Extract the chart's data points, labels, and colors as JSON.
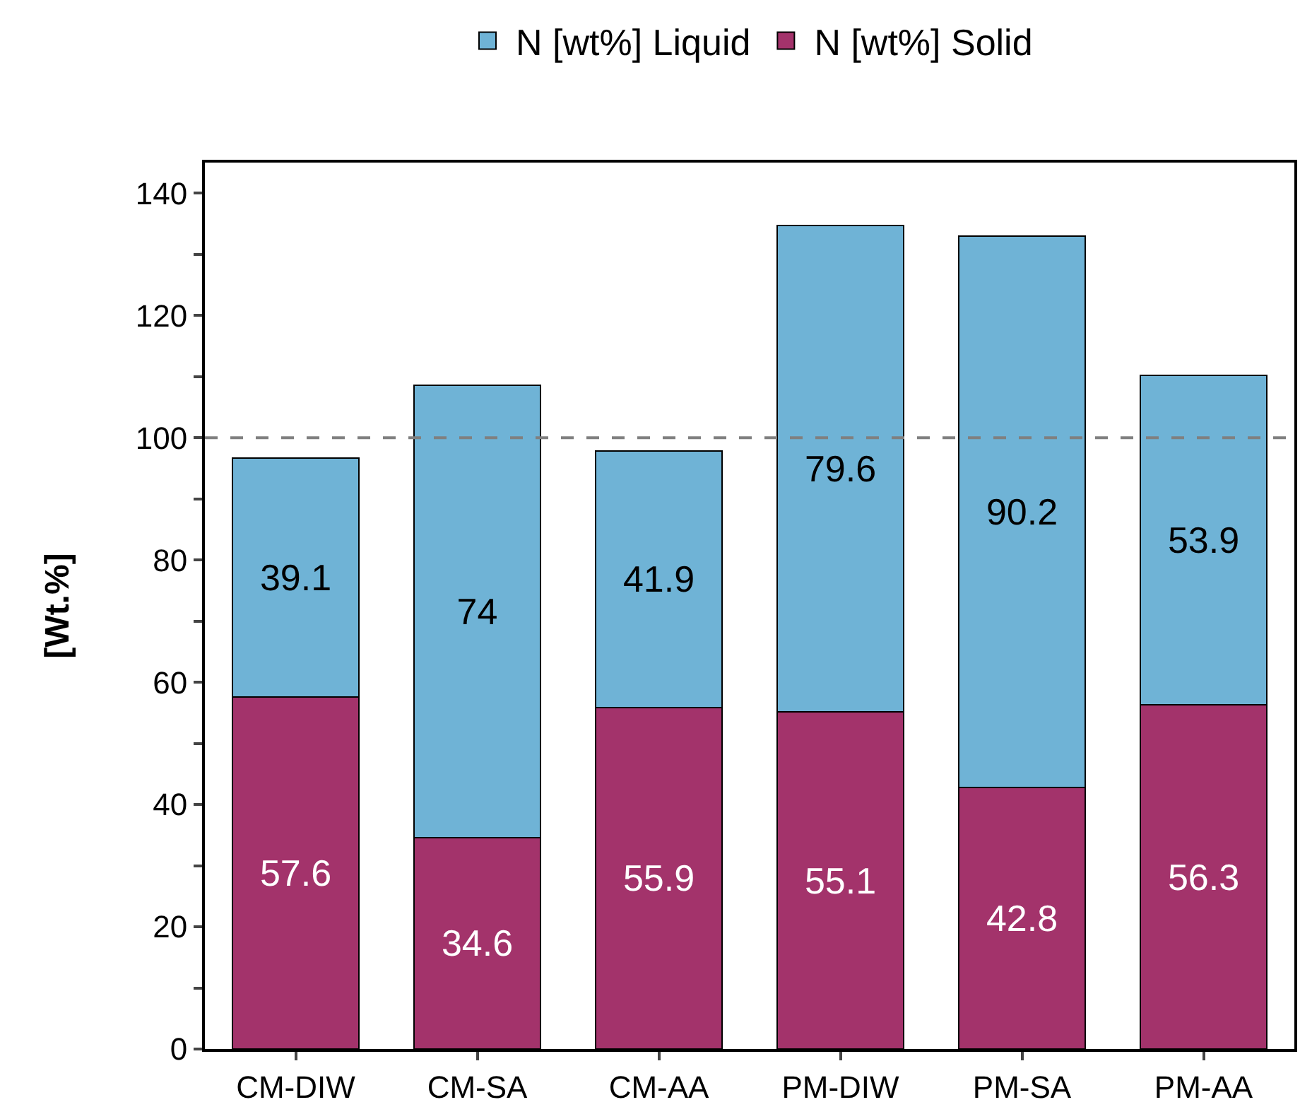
{
  "chart_data": {
    "type": "bar",
    "stacked": true,
    "ylabel": "[Wt.%]",
    "categories": [
      "CM-DIW",
      "CM-SA",
      "CM-AA",
      "PM-DIW",
      "PM-SA",
      "PM-AA"
    ],
    "series": [
      {
        "name": "N [wt%] Solid",
        "color": "#a3336b",
        "values": [
          57.6,
          34.6,
          55.9,
          55.1,
          42.8,
          56.3
        ]
      },
      {
        "name": "N [wt%] Liquid",
        "color": "#6fb3d6",
        "values": [
          39.1,
          74,
          41.9,
          79.6,
          90.2,
          53.9
        ]
      }
    ],
    "ylim": [
      0,
      145
    ],
    "yticks": [
      0,
      {
        "value": 10,
        "label": null
      },
      20,
      {
        "value": 30,
        "label": null
      },
      40,
      {
        "value": 50,
        "label": null
      },
      60,
      {
        "value": 70,
        "label": null
      },
      80,
      {
        "value": 90,
        "label": null
      },
      100,
      {
        "value": 110,
        "label": null
      },
      120,
      {
        "value": 130,
        "label": null
      },
      140
    ],
    "ref_lines": [
      {
        "axis": "y",
        "value": 100,
        "color": "#808080",
        "line_style": "dashed"
      }
    ],
    "data_labels": true,
    "legend": "top"
  }
}
